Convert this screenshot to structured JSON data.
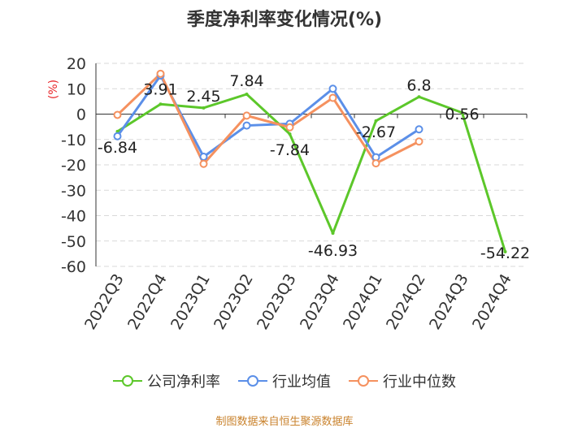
{
  "chart_data": {
    "type": "line",
    "title": "季度净利率变化情况(%)",
    "ylabel": "(%)",
    "xlabel": "",
    "ylim": [
      -60,
      20
    ],
    "yticks": [
      20,
      10,
      0,
      -10,
      -20,
      -30,
      -40,
      -50,
      -60
    ],
    "categories": [
      "2022Q3",
      "2022Q4",
      "2023Q1",
      "2023Q2",
      "2023Q3",
      "2023Q4",
      "2024Q1",
      "2024Q2",
      "2024Q3",
      "2024Q4"
    ],
    "grid": true,
    "legend_position": "bottom",
    "series": [
      {
        "name": "公司净利率",
        "color": "#5cc72a",
        "values": [
          -6.84,
          3.91,
          2.45,
          7.84,
          -7.84,
          -46.93,
          -2.67,
          6.8,
          0.56,
          -54.22
        ],
        "labels": [
          "-6.84",
          "3.91",
          "2.45",
          "7.84",
          "-7.84",
          "-46.93",
          "-2.67",
          "6.8",
          "0.56",
          "-54.22"
        ]
      },
      {
        "name": "行业均值",
        "color": "#5b8fe8",
        "values": [
          -8.7,
          15.2,
          -16.8,
          -4.5,
          -3.8,
          10.0,
          -17.0,
          -6.0,
          null,
          null
        ]
      },
      {
        "name": "行业中位数",
        "color": "#f5915f",
        "values": [
          -0.3,
          15.9,
          -19.6,
          -0.6,
          -5.2,
          6.4,
          -19.4,
          -10.8,
          null,
          null
        ]
      }
    ]
  },
  "source_note": "制图数据来自恒生聚源数据库"
}
